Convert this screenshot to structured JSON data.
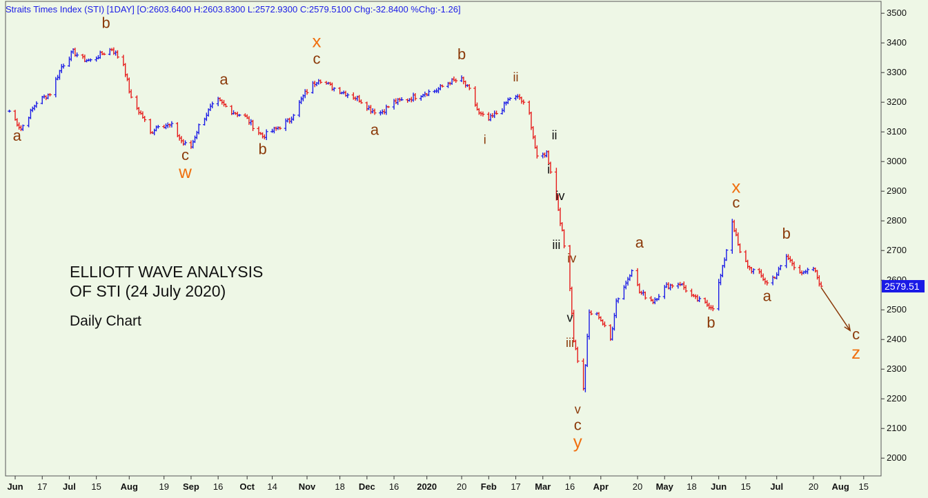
{
  "header": {
    "text": "Straits Times Index (STI) [1DAY] [O:2603.6400 H:2603.8300 L:2572.9300 C:2579.5100 Chg:-32.8400 %Chg:-1.26]"
  },
  "annotations": {
    "line1": "ELLIOTT WAVE ANALYSIS",
    "line2": "OF STI (24 July 2020)",
    "line3": "Daily Chart"
  },
  "colors": {
    "background": "#eef7e6",
    "up_bar": "#1a1ae6",
    "down_bar": "#e61a1a",
    "label_brown": "#8b3a0a",
    "label_orange": "#f07010",
    "label_black": "#111111",
    "last_price_bg": "#1a1ae6"
  },
  "chart_data": {
    "type": "ohlc",
    "title": "Straits Times Index (STI) [1DAY]",
    "ylim": [
      1940,
      3540
    ],
    "y_ticks": [
      2000,
      2100,
      2200,
      2300,
      2400,
      2500,
      2600,
      2700,
      2800,
      2900,
      3000,
      3100,
      3200,
      3300,
      3400,
      3500
    ],
    "grid": false,
    "last_price": "2579.51",
    "x_ticks": [
      {
        "date": "2019-06-03",
        "label": "Jun",
        "bold": true
      },
      {
        "date": "2019-06-17",
        "label": "17"
      },
      {
        "date": "2019-07-01",
        "label": "Jul",
        "bold": true
      },
      {
        "date": "2019-07-15",
        "label": "15"
      },
      {
        "date": "2019-08-01",
        "label": "Aug",
        "bold": true
      },
      {
        "date": "2019-08-19",
        "label": "19"
      },
      {
        "date": "2019-09-02",
        "label": "Sep",
        "bold": true
      },
      {
        "date": "2019-09-16",
        "label": "16"
      },
      {
        "date": "2019-10-01",
        "label": "Oct",
        "bold": true
      },
      {
        "date": "2019-10-14",
        "label": "14"
      },
      {
        "date": "2019-11-01",
        "label": "Nov",
        "bold": true
      },
      {
        "date": "2019-11-18",
        "label": "18"
      },
      {
        "date": "2019-12-02",
        "label": "Dec",
        "bold": true
      },
      {
        "date": "2019-12-16",
        "label": "16"
      },
      {
        "date": "2020-01-02",
        "label": "2020",
        "bold": true
      },
      {
        "date": "2020-01-20",
        "label": "20"
      },
      {
        "date": "2020-02-03",
        "label": "Feb",
        "bold": true
      },
      {
        "date": "2020-02-17",
        "label": "17"
      },
      {
        "date": "2020-03-02",
        "label": "Mar",
        "bold": true
      },
      {
        "date": "2020-03-16",
        "label": "16"
      },
      {
        "date": "2020-04-01",
        "label": "Apr",
        "bold": true
      },
      {
        "date": "2020-04-20",
        "label": "20"
      },
      {
        "date": "2020-05-04",
        "label": "May",
        "bold": true
      },
      {
        "date": "2020-05-18",
        "label": "18"
      },
      {
        "date": "2020-06-01",
        "label": "Jun",
        "bold": true
      },
      {
        "date": "2020-06-15",
        "label": "15"
      },
      {
        "date": "2020-07-01",
        "label": "Jul",
        "bold": true
      },
      {
        "date": "2020-07-20",
        "label": "20"
      },
      {
        "date": "2020-08-03",
        "label": "Aug",
        "bold": true
      },
      {
        "date": "2020-08-15",
        "label": "15"
      }
    ],
    "price_path": [
      [
        "2019-05-31",
        3170
      ],
      [
        "2019-06-06",
        3110
      ],
      [
        "2019-06-14",
        3200
      ],
      [
        "2019-06-21",
        3230
      ],
      [
        "2019-06-27",
        3320
      ],
      [
        "2019-07-03",
        3370
      ],
      [
        "2019-07-08",
        3345
      ],
      [
        "2019-07-12",
        3340
      ],
      [
        "2019-07-17",
        3360
      ],
      [
        "2019-07-23",
        3380
      ],
      [
        "2019-07-29",
        3330
      ],
      [
        "2019-08-02",
        3210
      ],
      [
        "2019-08-08",
        3150
      ],
      [
        "2019-08-12",
        3095
      ],
      [
        "2019-08-16",
        3125
      ],
      [
        "2019-08-23",
        3120
      ],
      [
        "2019-08-29",
        3060
      ],
      [
        "2019-09-02",
        3050
      ],
      [
        "2019-09-06",
        3120
      ],
      [
        "2019-09-12",
        3180
      ],
      [
        "2019-09-16",
        3205
      ],
      [
        "2019-09-23",
        3170
      ],
      [
        "2019-09-30",
        3150
      ],
      [
        "2019-10-04",
        3120
      ],
      [
        "2019-10-09",
        3085
      ],
      [
        "2019-10-16",
        3110
      ],
      [
        "2019-10-23",
        3140
      ],
      [
        "2019-10-31",
        3230
      ],
      [
        "2019-11-07",
        3280
      ],
      [
        "2019-11-14",
        3250
      ],
      [
        "2019-11-21",
        3230
      ],
      [
        "2019-11-28",
        3210
      ],
      [
        "2019-12-04",
        3175
      ],
      [
        "2019-12-09",
        3165
      ],
      [
        "2019-12-16",
        3200
      ],
      [
        "2019-12-23",
        3210
      ],
      [
        "2019-12-31",
        3230
      ],
      [
        "2020-01-07",
        3240
      ],
      [
        "2020-01-14",
        3270
      ],
      [
        "2020-01-20",
        3275
      ],
      [
        "2020-01-24",
        3240
      ],
      [
        "2020-01-29",
        3160
      ],
      [
        "2020-02-03",
        3140
      ],
      [
        "2020-02-10",
        3180
      ],
      [
        "2020-02-14",
        3215
      ],
      [
        "2020-02-19",
        3215
      ],
      [
        "2020-02-24",
        3160
      ],
      [
        "2020-02-28",
        3010
      ],
      [
        "2020-03-04",
        3030
      ],
      [
        "2020-03-09",
        2880
      ],
      [
        "2020-03-12",
        2760
      ],
      [
        "2020-03-16",
        2580
      ],
      [
        "2020-03-18",
        2400
      ],
      [
        "2020-03-23",
        2230
      ],
      [
        "2020-03-26",
        2490
      ],
      [
        "2020-03-31",
        2480
      ],
      [
        "2020-04-06",
        2400
      ],
      [
        "2020-04-09",
        2530
      ],
      [
        "2020-04-14",
        2590
      ],
      [
        "2020-04-17",
        2640
      ],
      [
        "2020-04-21",
        2560
      ],
      [
        "2020-04-28",
        2530
      ],
      [
        "2020-05-05",
        2580
      ],
      [
        "2020-05-12",
        2590
      ],
      [
        "2020-05-19",
        2540
      ],
      [
        "2020-05-25",
        2520
      ],
      [
        "2020-05-29",
        2510
      ],
      [
        "2020-06-03",
        2640
      ],
      [
        "2020-06-08",
        2800
      ],
      [
        "2020-06-12",
        2690
      ],
      [
        "2020-06-17",
        2640
      ],
      [
        "2020-06-22",
        2620
      ],
      [
        "2020-06-26",
        2590
      ],
      [
        "2020-07-01",
        2620
      ],
      [
        "2020-07-06",
        2680
      ],
      [
        "2020-07-10",
        2650
      ],
      [
        "2020-07-15",
        2620
      ],
      [
        "2020-07-20",
        2640
      ],
      [
        "2020-07-24",
        2579.51
      ]
    ],
    "projection": {
      "from": [
        "2020-07-24",
        2575
      ],
      "to": [
        "2020-08-08",
        2430
      ]
    },
    "wave_labels": [
      {
        "text": "a",
        "date": "2019-06-04",
        "price": 3070,
        "color": "brown"
      },
      {
        "text": "b",
        "date": "2019-07-20",
        "price": 3450,
        "color": "brown"
      },
      {
        "text": "c",
        "date": "2019-08-30",
        "price": 3005,
        "color": "brown"
      },
      {
        "text": "w",
        "date": "2019-08-30",
        "price": 2945,
        "color": "orange",
        "size": "large"
      },
      {
        "text": "a",
        "date": "2019-09-19",
        "price": 3260,
        "color": "brown"
      },
      {
        "text": "b",
        "date": "2019-10-09",
        "price": 3025,
        "color": "brown"
      },
      {
        "text": "x",
        "date": "2019-11-06",
        "price": 3385,
        "color": "orange",
        "size": "large"
      },
      {
        "text": "c",
        "date": "2019-11-06",
        "price": 3330,
        "color": "brown"
      },
      {
        "text": "a",
        "date": "2019-12-06",
        "price": 3090,
        "color": "brown"
      },
      {
        "text": "b",
        "date": "2020-01-20",
        "price": 3345,
        "color": "brown"
      },
      {
        "text": "i",
        "date": "2020-02-01",
        "price": 3060,
        "color": "brown",
        "size": "small"
      },
      {
        "text": "ii",
        "date": "2020-02-17",
        "price": 3270,
        "color": "brown",
        "size": "small"
      },
      {
        "text": "ii",
        "date": "2020-03-08",
        "price": 3075,
        "color": "black",
        "size": "small"
      },
      {
        "text": "i",
        "date": "2020-03-05",
        "price": 2960,
        "color": "black",
        "size": "small"
      },
      {
        "text": "iv",
        "date": "2020-03-11",
        "price": 2870,
        "color": "black",
        "size": "small"
      },
      {
        "text": "iii",
        "date": "2020-03-09",
        "price": 2705,
        "color": "black",
        "size": "small"
      },
      {
        "text": "iv",
        "date": "2020-03-17",
        "price": 2660,
        "color": "brown",
        "size": "small"
      },
      {
        "text": "v",
        "date": "2020-03-16",
        "price": 2460,
        "color": "black",
        "size": "small"
      },
      {
        "text": "iii",
        "date": "2020-03-16",
        "price": 2375,
        "color": "brown",
        "size": "small"
      },
      {
        "text": "v",
        "date": "2020-03-20",
        "price": 2150,
        "color": "brown",
        "size": "small"
      },
      {
        "text": "c",
        "date": "2020-03-20",
        "price": 2095,
        "color": "brown"
      },
      {
        "text": "y",
        "date": "2020-03-20",
        "price": 2035,
        "color": "orange",
        "size": "large"
      },
      {
        "text": "a",
        "date": "2020-04-21",
        "price": 2710,
        "color": "brown"
      },
      {
        "text": "b",
        "date": "2020-05-28",
        "price": 2440,
        "color": "brown"
      },
      {
        "text": "x",
        "date": "2020-06-10",
        "price": 2895,
        "color": "orange",
        "size": "large"
      },
      {
        "text": "c",
        "date": "2020-06-10",
        "price": 2845,
        "color": "brown"
      },
      {
        "text": "a",
        "date": "2020-06-26",
        "price": 2530,
        "color": "brown"
      },
      {
        "text": "b",
        "date": "2020-07-06",
        "price": 2740,
        "color": "brown"
      },
      {
        "text": "c",
        "date": "2020-08-11",
        "price": 2400,
        "color": "brown"
      },
      {
        "text": "z",
        "date": "2020-08-11",
        "price": 2335,
        "color": "orange",
        "size": "large"
      }
    ]
  }
}
